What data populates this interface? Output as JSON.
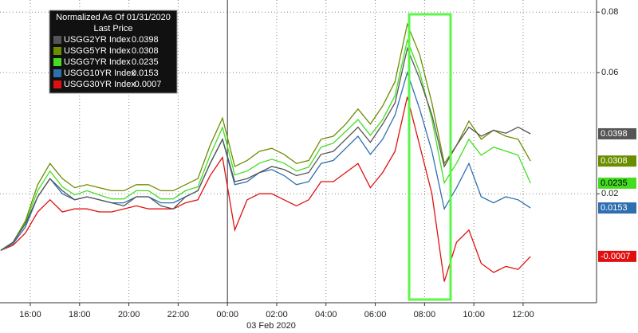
{
  "chart_data": {
    "type": "line",
    "legend_title": "Normalized As Of 01/31/2020",
    "legend_subtitle": "Last Price",
    "legend_position": "upper left",
    "xlabel": "03 Feb 2020",
    "x": [
      14.8,
      15.3,
      15.8,
      16.3,
      16.8,
      17.3,
      17.8,
      18.3,
      18.8,
      19.3,
      19.8,
      20.3,
      20.8,
      21.3,
      21.8,
      22.3,
      22.8,
      23.3,
      23.8,
      24.3,
      24.8,
      25.3,
      25.8,
      26.3,
      26.8,
      27.3,
      27.8,
      28.3,
      28.8,
      29.3,
      29.8,
      30.3,
      30.8,
      31.3,
      31.8,
      32.3,
      32.8,
      33.3,
      33.8,
      34.3,
      34.8,
      35.3,
      35.8,
      36.3
    ],
    "xlim": [
      14.77,
      38.98
    ],
    "xticks": [
      {
        "value": 16,
        "label": "16:00"
      },
      {
        "value": 18,
        "label": "18:00"
      },
      {
        "value": 20,
        "label": "20:00"
      },
      {
        "value": 22,
        "label": "22:00"
      },
      {
        "value": 24,
        "label": "00:00"
      },
      {
        "value": 26,
        "label": "02:00"
      },
      {
        "value": 28,
        "label": "04:00"
      },
      {
        "value": 30,
        "label": "06:00"
      },
      {
        "value": 32,
        "label": "08:00"
      },
      {
        "value": 34,
        "label": "10:00"
      },
      {
        "value": 36,
        "label": "12:00"
      }
    ],
    "ylim": [
      -0.016,
      0.084
    ],
    "yticks": [
      0.02,
      0.06,
      0.08
    ],
    "grid": true,
    "series": [
      {
        "name": "USGG2YR Index",
        "color": "#555555",
        "values": [
          0.0013,
          0.004,
          0.01,
          0.019,
          0.025,
          0.021,
          0.018,
          0.019,
          0.018,
          0.017,
          0.016,
          0.019,
          0.019,
          0.016,
          0.015,
          0.019,
          0.021,
          0.03,
          0.038,
          0.024,
          0.025,
          0.027,
          0.029,
          0.028,
          0.026,
          0.027,
          0.033,
          0.034,
          0.038,
          0.042,
          0.037,
          0.043,
          0.05,
          0.068,
          0.058,
          0.046,
          0.029,
          0.036,
          0.042,
          0.039,
          0.041,
          0.04,
          0.042,
          0.0398
        ]
      },
      {
        "name": "USGG5YR Index",
        "color": "#6b8e00",
        "values": [
          0.0013,
          0.004,
          0.011,
          0.023,
          0.03,
          0.025,
          0.022,
          0.023,
          0.022,
          0.021,
          0.021,
          0.023,
          0.023,
          0.021,
          0.021,
          0.023,
          0.025,
          0.036,
          0.045,
          0.029,
          0.031,
          0.034,
          0.035,
          0.033,
          0.03,
          0.031,
          0.038,
          0.039,
          0.043,
          0.048,
          0.043,
          0.049,
          0.057,
          0.076,
          0.066,
          0.05,
          0.03,
          0.036,
          0.044,
          0.038,
          0.041,
          0.039,
          0.038,
          0.0308
        ]
      },
      {
        "name": "USGG7YR Index",
        "color": "#44dd22",
        "values": [
          0.0013,
          0.004,
          0.0105,
          0.021,
          0.0275,
          0.0223,
          0.0196,
          0.021,
          0.0196,
          0.0183,
          0.0183,
          0.021,
          0.021,
          0.0183,
          0.0183,
          0.021,
          0.0223,
          0.0327,
          0.0419,
          0.0262,
          0.0275,
          0.0301,
          0.0314,
          0.0301,
          0.0275,
          0.0288,
          0.0354,
          0.0367,
          0.0406,
          0.0445,
          0.0393,
          0.0445,
          0.0524,
          0.0707,
          0.0603,
          0.0445,
          0.0236,
          0.0301,
          0.038,
          0.0327,
          0.0354,
          0.0341,
          0.0327,
          0.0235
        ]
      },
      {
        "name": "USGG10YR Index",
        "color": "#2f6fb0",
        "values": [
          0.0013,
          0.0035,
          0.009,
          0.019,
          0.025,
          0.02,
          0.018,
          0.019,
          0.018,
          0.017,
          0.017,
          0.019,
          0.019,
          0.017,
          0.017,
          0.019,
          0.021,
          0.03,
          0.038,
          0.023,
          0.024,
          0.027,
          0.028,
          0.026,
          0.023,
          0.024,
          0.03,
          0.031,
          0.035,
          0.039,
          0.033,
          0.038,
          0.046,
          0.06,
          0.048,
          0.034,
          0.015,
          0.022,
          0.03,
          0.019,
          0.017,
          0.019,
          0.018,
          0.0153
        ]
      },
      {
        "name": "USGG30YR Index",
        "color": "#e01010",
        "values": [
          0.0013,
          0.003,
          0.007,
          0.014,
          0.018,
          0.014,
          0.015,
          0.015,
          0.014,
          0.014,
          0.015,
          0.016,
          0.015,
          0.015,
          0.015,
          0.017,
          0.018,
          0.026,
          0.032,
          0.008,
          0.018,
          0.02,
          0.02,
          0.018,
          0.016,
          0.018,
          0.024,
          0.024,
          0.027,
          0.03,
          0.022,
          0.027,
          0.034,
          0.052,
          0.036,
          0.02,
          -0.009,
          0.004,
          0.008,
          -0.003,
          -0.006,
          -0.004,
          -0.005,
          -0.0007
        ]
      }
    ]
  }
}
